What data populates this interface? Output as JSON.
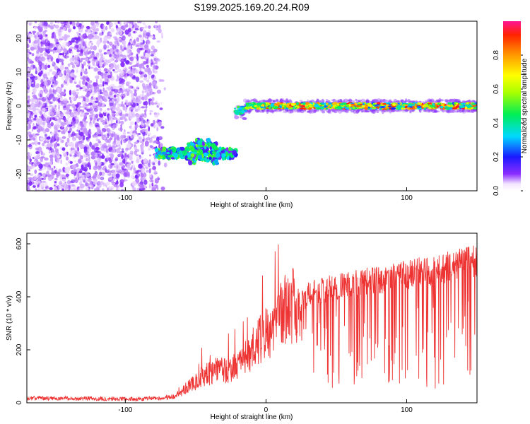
{
  "chart_data": [
    {
      "type": "heatmap",
      "title": "S199.2025.169.20.24.R09",
      "xlabel": "Height of straight line (km)",
      "ylabel": "Frequency (Hz)",
      "xlim": [
        -170,
        150
      ],
      "ylim": [
        -25,
        25
      ],
      "xticks": [
        -100,
        0,
        100
      ],
      "yticks": [
        -20,
        -10,
        0,
        10,
        20
      ],
      "colorbar": {
        "label": "Normalized spectral amplitude",
        "range": [
          0.0,
          1.0
        ],
        "ticks": [
          0.0,
          0.2,
          0.4,
          0.6,
          0.8
        ],
        "colormap": "rainbow (purple-blue-cyan-green-yellow-orange-red)"
      },
      "features": [
        {
          "name": "",
          "x": [
            -170,
            -70
          ],
          "y": [
            -25,
            25
          ],
          "amplitude": 0.05,
          "description": "scattered low amplitude noise"
        },
        {
          "name": "",
          "x": [
            -78,
            -21
          ],
          "y_center": -14,
          "amplitude_max": 0.45
        },
        {
          "name": "",
          "x": [
            -22,
            150
          ],
          "y_center": 0,
          "amplitude_max": 0.95
        }
      ],
      "grid": false
    },
    {
      "type": "line",
      "xlabel": "Height of straight line (km)",
      "ylabel": "SNR (10 * v/v)",
      "xlim": [
        -170,
        150
      ],
      "ylim": [
        0,
        640
      ],
      "xticks": [
        -100,
        0,
        100
      ],
      "yticks": [
        0,
        200,
        400,
        600
      ],
      "series": [
        {
          "color": "#ee3333",
          "x": [
            -170,
            -150,
            -130,
            -110,
            -90,
            -75,
            -65,
            -60,
            -55,
            -50,
            -45,
            -40,
            -35,
            -30,
            -25,
            -20,
            -15,
            -10,
            -5,
            0,
            5,
            10,
            15,
            20,
            25,
            30,
            40,
            50,
            60,
            70,
            80,
            90,
            100,
            110,
            120,
            130,
            140,
            150
          ],
          "values": [
            18,
            17,
            16,
            15,
            15,
            18,
            25,
            45,
            70,
            85,
            110,
            120,
            135,
            130,
            140,
            150,
            180,
            220,
            250,
            280,
            320,
            350,
            380,
            400,
            420,
            440,
            455,
            470,
            480,
            490,
            500,
            510,
            520,
            530,
            540,
            550,
            565,
            580
          ]
        }
      ],
      "grid": false
    }
  ]
}
